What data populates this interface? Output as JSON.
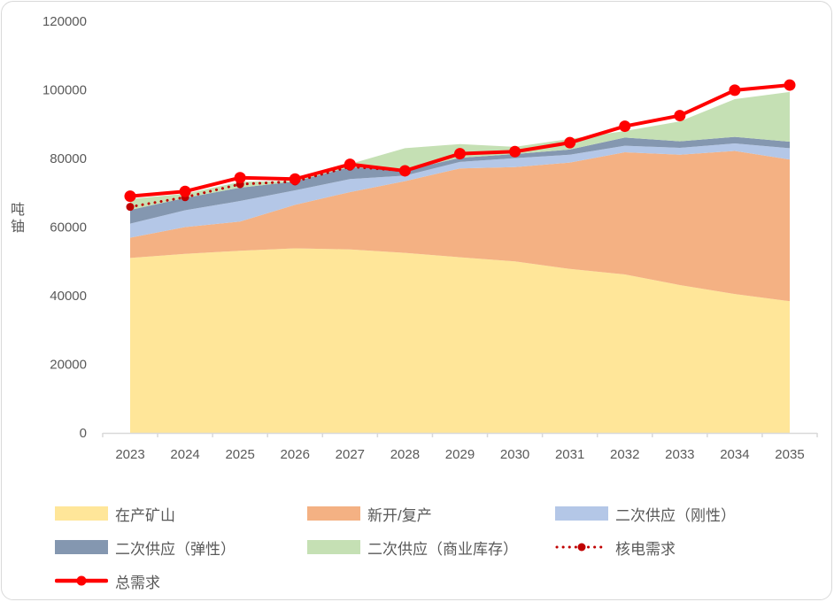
{
  "frame": {
    "background": "#FFFFFF",
    "border_color": "#D9D9D9"
  },
  "axis_style": {
    "line_color": "#D9D9D9",
    "label_color": "#595959"
  },
  "chart_data": {
    "type": "area",
    "subtype": "stacked-area-with-lines",
    "title": "",
    "xlabel": "",
    "ylabel": "吨铀",
    "ylim": [
      0,
      120000
    ],
    "y_ticks": [
      "0",
      "20000",
      "40000",
      "60000",
      "80000",
      "100000",
      "120000"
    ],
    "y_tick_values": [
      0,
      20000,
      40000,
      60000,
      80000,
      100000,
      120000
    ],
    "grid": false,
    "legend_position": "bottom-left",
    "categories": [
      "2023",
      "2024",
      "2025",
      "2026",
      "2027",
      "2028",
      "2029",
      "2030",
      "2031",
      "2032",
      "2033",
      "2034",
      "2035"
    ],
    "stacked_series": [
      {
        "name": "在产矿山",
        "color": "#FFE699",
        "values": [
          51000,
          52200,
          53100,
          53800,
          53500,
          52500,
          51200,
          50000,
          47800,
          46200,
          43100,
          40500,
          38400
        ]
      },
      {
        "name": "新开/复产",
        "color": "#F4B183",
        "values": [
          5900,
          7800,
          8500,
          12700,
          16700,
          20900,
          25900,
          27500,
          31000,
          35600,
          38000,
          41700,
          41300
        ]
      },
      {
        "name": "二次供应（刚性）",
        "color": "#B4C7E7",
        "values": [
          4100,
          4900,
          6000,
          4200,
          3800,
          1600,
          1900,
          2600,
          2300,
          1900,
          2000,
          2200,
          3300
        ]
      },
      {
        "name": "二次供应（弹性）",
        "color": "#8497B0",
        "values": [
          4000,
          3600,
          3900,
          2600,
          3500,
          1500,
          1200,
          1200,
          1500,
          2400,
          1900,
          1900,
          1900
        ]
      },
      {
        "name": "二次供应（商业库存）",
        "color": "#C5E0B4",
        "values": [
          3200,
          1200,
          1700,
          200,
          900,
          6500,
          4000,
          2100,
          3100,
          1900,
          5800,
          11000,
          14500
        ]
      }
    ],
    "line_series": [
      {
        "name": "核电需求",
        "color": "#C00000",
        "style": "dotted",
        "values": [
          65900,
          68700,
          72500,
          73300,
          77600,
          76400,
          81400,
          82000,
          84600,
          89400,
          92500,
          99900,
          101400
        ]
      },
      {
        "name": "总需求",
        "color": "#FF0000",
        "style": "solid",
        "values": [
          69000,
          70400,
          74400,
          74000,
          78300,
          76400,
          81400,
          82000,
          84600,
          89400,
          92500,
          99900,
          101400
        ]
      }
    ],
    "legend_order": [
      "在产矿山",
      "新开/复产",
      "二次供应（刚性）",
      "二次供应（弹性）",
      "二次供应（商业库存）",
      "核电需求",
      "总需求"
    ]
  }
}
